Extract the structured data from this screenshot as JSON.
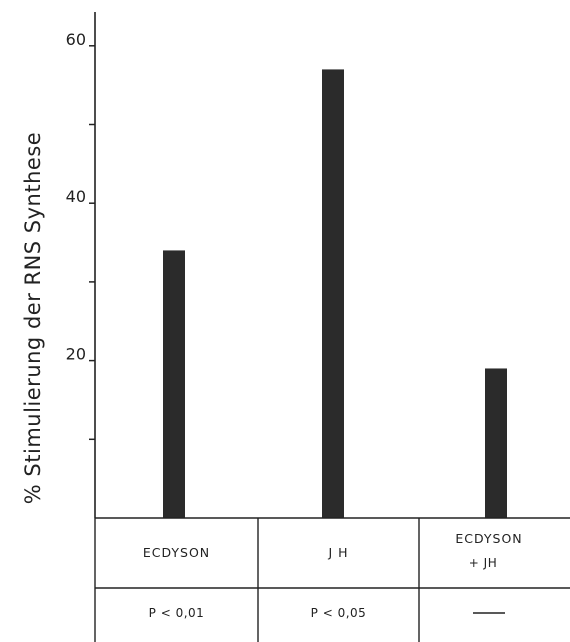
{
  "chart_data": {
    "type": "bar",
    "ylabel": "% Stimulierung der RNS Synthese",
    "ylim": [
      0,
      60
    ],
    "yticks_labeled": [
      "20",
      "40",
      "60"
    ],
    "ytick_values": [
      10,
      20,
      30,
      40,
      50,
      60
    ],
    "categories": [
      {
        "lines": [
          "ECDYSON"
        ],
        "significance": "P < 0,01"
      },
      {
        "lines": [
          "J H"
        ],
        "significance": "P < 0,05"
      },
      {
        "lines": [
          "ECDYSON",
          "+ JH"
        ],
        "significance": "—"
      }
    ],
    "values": [
      34,
      57,
      19
    ],
    "bar_color": "#2b2b2b",
    "grid": false
  }
}
